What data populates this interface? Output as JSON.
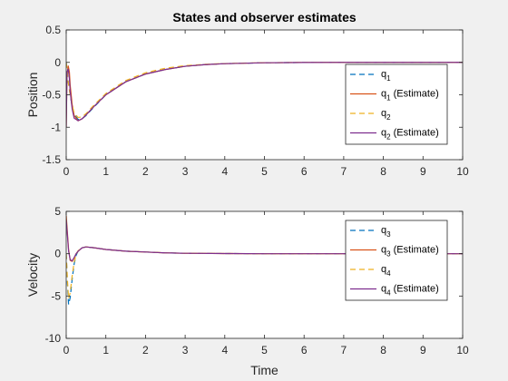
{
  "figure": {
    "background": "#f0f0f0"
  },
  "chart_data": [
    {
      "type": "line",
      "title": "States and observer estimates",
      "xlabel": "",
      "ylabel": "Position",
      "xlim": [
        0,
        10
      ],
      "ylim": [
        -1.5,
        0.5
      ],
      "xticks": [
        "0",
        "1",
        "2",
        "3",
        "4",
        "5",
        "6",
        "7",
        "8",
        "9",
        "10"
      ],
      "yticks": [
        "0.5",
        "0",
        "-0.5",
        "-1",
        "-1.5"
      ],
      "grid": false,
      "legend_position": "right",
      "series": [
        {
          "name": "q",
          "sub": "1",
          "suffix": "",
          "color": "#0072bd",
          "dash": "dashed",
          "x": [
            0,
            0.05,
            0.1,
            0.15,
            0.2,
            0.3,
            0.4,
            0.5,
            0.7,
            1.0,
            1.5,
            2.0,
            2.5,
            3.0,
            3.5,
            4.0,
            5.0,
            6.0,
            7.0,
            8.0,
            10.0
          ],
          "y": [
            0,
            -0.3,
            -0.5,
            -0.68,
            -0.8,
            -0.88,
            -0.87,
            -0.82,
            -0.69,
            -0.5,
            -0.3,
            -0.18,
            -0.11,
            -0.06,
            -0.035,
            -0.02,
            -0.006,
            -0.002,
            0,
            0,
            0
          ]
        },
        {
          "name": "q",
          "sub": "1",
          "suffix": " (Estimate)",
          "color": "#d95319",
          "dash": "solid",
          "x": [
            0,
            0.02,
            0.05,
            0.08,
            0.1,
            0.15,
            0.2,
            0.3,
            0.4,
            0.5,
            0.7,
            1.0,
            1.5,
            2.0,
            2.5,
            3.0,
            3.5,
            4.0,
            5.0,
            6.0,
            7.0,
            8.0,
            10.0
          ],
          "y": [
            -1.0,
            -0.2,
            -0.05,
            -0.15,
            -0.35,
            -0.65,
            -0.82,
            -0.9,
            -0.87,
            -0.81,
            -0.68,
            -0.5,
            -0.3,
            -0.18,
            -0.11,
            -0.06,
            -0.035,
            -0.02,
            -0.006,
            -0.002,
            0,
            0,
            0
          ]
        },
        {
          "name": "q",
          "sub": "2",
          "suffix": "",
          "color": "#edb120",
          "dash": "dashed",
          "x": [
            0,
            0.05,
            0.1,
            0.15,
            0.2,
            0.3,
            0.4,
            0.5,
            0.7,
            1.0,
            1.5,
            2.0,
            2.5,
            3.0,
            3.5,
            4.0,
            5.0,
            6.0,
            7.0,
            8.0,
            10.0
          ],
          "y": [
            0,
            -0.3,
            -0.5,
            -0.66,
            -0.78,
            -0.85,
            -0.84,
            -0.79,
            -0.66,
            -0.48,
            -0.28,
            -0.16,
            -0.09,
            -0.05,
            -0.03,
            -0.018,
            -0.005,
            -0.001,
            0,
            0,
            0
          ]
        },
        {
          "name": "q",
          "sub": "2",
          "suffix": " (Estimate)",
          "color": "#7e2f8e",
          "dash": "solid",
          "x": [
            0,
            0.02,
            0.05,
            0.08,
            0.1,
            0.15,
            0.2,
            0.3,
            0.4,
            0.5,
            0.7,
            1.0,
            1.5,
            2.0,
            2.5,
            3.0,
            3.5,
            4.0,
            5.0,
            6.0,
            7.0,
            8.0,
            10.0
          ],
          "y": [
            -1.0,
            -0.15,
            -0.1,
            -0.25,
            -0.45,
            -0.72,
            -0.86,
            -0.9,
            -0.87,
            -0.81,
            -0.68,
            -0.5,
            -0.3,
            -0.18,
            -0.11,
            -0.06,
            -0.035,
            -0.02,
            -0.006,
            -0.002,
            0,
            0,
            0
          ]
        }
      ]
    },
    {
      "type": "line",
      "title": "",
      "xlabel": "Time",
      "ylabel": "Velocity",
      "xlim": [
        0,
        10
      ],
      "ylim": [
        -10,
        5
      ],
      "xticks": [
        "0",
        "1",
        "2",
        "3",
        "4",
        "5",
        "6",
        "7",
        "8",
        "9",
        "10"
      ],
      "yticks": [
        "5",
        "0",
        "-5",
        "-10"
      ],
      "grid": false,
      "legend_position": "right",
      "series": [
        {
          "name": "q",
          "sub": "3",
          "suffix": "",
          "color": "#0072bd",
          "dash": "dashed",
          "x": [
            0,
            0.03,
            0.06,
            0.1,
            0.15,
            0.2,
            0.25,
            0.3,
            0.4,
            0.5,
            0.7,
            1.0,
            1.5,
            2.0,
            2.5,
            3.0,
            4.0,
            5.0,
            10.0
          ],
          "y": [
            0,
            -3.5,
            -6.0,
            -5.2,
            -3.0,
            -1.2,
            -0.2,
            0.3,
            0.7,
            0.8,
            0.7,
            0.5,
            0.3,
            0.2,
            0.1,
            0.05,
            0.02,
            0.0,
            0.0
          ]
        },
        {
          "name": "q",
          "sub": "3",
          "suffix": " (Estimate)",
          "color": "#d95319",
          "dash": "solid",
          "x": [
            0,
            0.03,
            0.06,
            0.1,
            0.15,
            0.2,
            0.25,
            0.3,
            0.4,
            0.5,
            0.7,
            1.0,
            1.5,
            2.0,
            2.5,
            3.0,
            4.0,
            5.0,
            10.0
          ],
          "y": [
            4.5,
            2.5,
            0.5,
            -0.8,
            -0.9,
            -0.5,
            0.0,
            0.3,
            0.7,
            0.8,
            0.7,
            0.5,
            0.3,
            0.2,
            0.1,
            0.05,
            0.02,
            0.0,
            0.0
          ]
        },
        {
          "name": "q",
          "sub": "4",
          "suffix": "",
          "color": "#edb120",
          "dash": "dashed",
          "x": [
            0,
            0.03,
            0.06,
            0.1,
            0.15,
            0.2,
            0.25,
            0.3,
            0.4,
            0.5,
            0.7,
            1.0,
            1.5,
            2.0,
            2.5,
            3.0,
            4.0,
            5.0,
            10.0
          ],
          "y": [
            0,
            -3.0,
            -5.3,
            -4.6,
            -2.6,
            -1.0,
            -0.1,
            0.35,
            0.7,
            0.8,
            0.7,
            0.5,
            0.3,
            0.2,
            0.1,
            0.05,
            0.02,
            0.0,
            0.0
          ]
        },
        {
          "name": "q",
          "sub": "4",
          "suffix": " (Estimate)",
          "color": "#7e2f8e",
          "dash": "solid",
          "x": [
            0,
            0.03,
            0.06,
            0.1,
            0.15,
            0.2,
            0.25,
            0.3,
            0.4,
            0.5,
            0.7,
            1.0,
            1.5,
            2.0,
            2.5,
            3.0,
            4.0,
            5.0,
            10.0
          ],
          "y": [
            4.0,
            2.2,
            0.3,
            -0.7,
            -0.85,
            -0.45,
            0.0,
            0.3,
            0.7,
            0.8,
            0.7,
            0.5,
            0.3,
            0.2,
            0.1,
            0.05,
            0.02,
            0.0,
            0.0
          ]
        }
      ]
    }
  ]
}
